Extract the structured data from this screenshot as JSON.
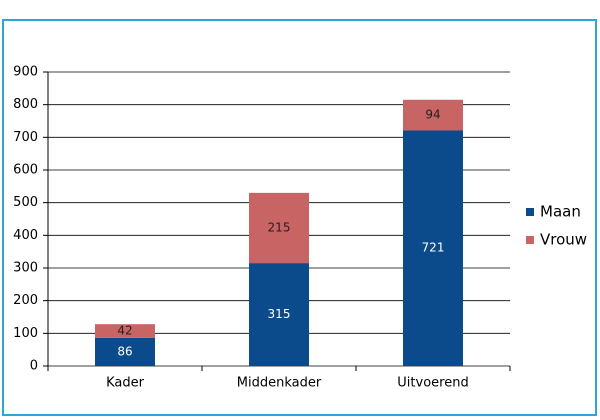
{
  "chart_data": {
    "type": "stacked_bar",
    "categories": [
      "Kader",
      "Middenkader",
      "Uitvoerend"
    ],
    "series": [
      {
        "name": "Maan",
        "color": "#0b4a8b",
        "values": [
          86,
          315,
          721
        ]
      },
      {
        "name": "Vrouw",
        "color": "#c96464",
        "values": [
          42,
          215,
          94
        ]
      }
    ],
    "ylim": [
      0,
      900
    ],
    "yticks": [
      0,
      100,
      200,
      300,
      400,
      500,
      600,
      700,
      800,
      900
    ],
    "grid": true,
    "legend": "right"
  }
}
